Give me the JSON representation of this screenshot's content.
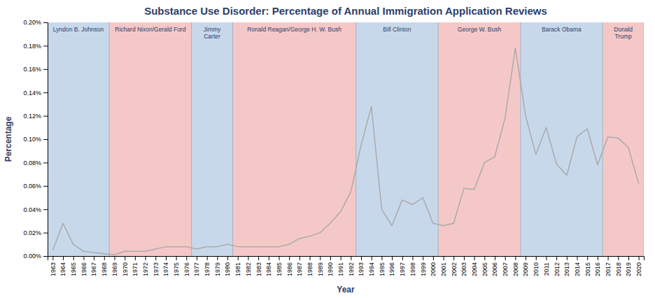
{
  "chart_data": {
    "type": "line",
    "title": "Substance Use Disorder: Percentage of Annual Immigration Application Reviews",
    "x_label": "Year",
    "y_label": "Percentage",
    "x": [
      1963,
      1964,
      1965,
      1966,
      1967,
      1968,
      1969,
      1970,
      1971,
      1972,
      1973,
      1974,
      1975,
      1976,
      1977,
      1978,
      1979,
      1980,
      1981,
      1982,
      1983,
      1984,
      1985,
      1986,
      1987,
      1988,
      1989,
      1990,
      1991,
      1992,
      1993,
      1994,
      1995,
      1996,
      1997,
      1998,
      1999,
      2000,
      2001,
      2002,
      2003,
      2004,
      2005,
      2006,
      2007,
      2008,
      2009,
      2010,
      2011,
      2012,
      2013,
      2014,
      2015,
      2016,
      2017,
      2018,
      2019,
      2020
    ],
    "values": [
      5e-05,
      0.00028,
      0.0001,
      4e-05,
      3e-05,
      2e-05,
      1e-05,
      4e-05,
      4e-05,
      4e-05,
      6e-05,
      8e-05,
      8e-05,
      8e-05,
      6e-05,
      8e-05,
      8e-05,
      0.0001,
      8e-05,
      8e-05,
      8e-05,
      8e-05,
      8e-05,
      0.0001,
      0.00015,
      0.00017,
      0.0002,
      0.00028,
      0.00038,
      0.00055,
      0.00095,
      0.00128,
      0.0004,
      0.00026,
      0.00048,
      0.00044,
      0.0005,
      0.00028,
      0.00026,
      0.00028,
      0.00058,
      0.00057,
      0.0008,
      0.00085,
      0.00118,
      0.00178,
      0.0012,
      0.00087,
      0.0011,
      0.00079,
      0.00069,
      0.00102,
      0.00109,
      0.00078,
      0.00102,
      0.00101,
      0.00093,
      0.00062
    ],
    "color": "#aaaaaa",
    "xlim": [
      1962.5,
      2020.5
    ],
    "xticks": [
      1963,
      1964,
      1965,
      1966,
      1967,
      1968,
      1969,
      1970,
      1971,
      1972,
      1973,
      1974,
      1975,
      1976,
      1977,
      1978,
      1979,
      1980,
      1981,
      1982,
      1983,
      1984,
      1985,
      1986,
      1987,
      1988,
      1989,
      1990,
      1991,
      1992,
      1993,
      1994,
      1995,
      1996,
      1997,
      1998,
      1999,
      2000,
      2001,
      2002,
      2003,
      2004,
      2005,
      2006,
      2007,
      2008,
      2009,
      2010,
      2011,
      2012,
      2013,
      2014,
      2015,
      2016,
      2017,
      2018,
      2019,
      2020
    ],
    "ylim": [
      0,
      0.002
    ],
    "yticks": [
      {
        "value": 0,
        "label": "0.00%"
      },
      {
        "value": 0.0002,
        "label": "0.02%"
      },
      {
        "value": 0.0004,
        "label": "0.04%"
      },
      {
        "value": 0.0006,
        "label": "0.06%"
      },
      {
        "value": 0.0008,
        "label": "0.08%"
      },
      {
        "value": 0.001,
        "label": "0.10%"
      },
      {
        "value": 0.0012,
        "label": "0.12%"
      },
      {
        "value": 0.0014,
        "label": "0.14%"
      },
      {
        "value": 0.0016,
        "label": "0.16%"
      },
      {
        "value": 0.0018,
        "label": "0.18%"
      },
      {
        "value": 0.002,
        "label": "0.20%"
      }
    ],
    "grid": false,
    "annotations": [
      {
        "text": "Lyndon B. Johnson",
        "x_start": 1962.5,
        "x_end": 1968.5,
        "color": "#c8d8eb"
      },
      {
        "text": "Richard Nixon/Gerald Ford",
        "x_start": 1968.5,
        "x_end": 1976.5,
        "color": "#f5c8c8"
      },
      {
        "text": "Jimmy\nCarter",
        "x_start": 1976.5,
        "x_end": 1980.5,
        "color": "#c8d8eb"
      },
      {
        "text": "Ronald Reagan/George H. W. Bush",
        "x_start": 1980.5,
        "x_end": 1992.5,
        "color": "#f5c8c8"
      },
      {
        "text": "Bill Clinton",
        "x_start": 1992.5,
        "x_end": 2000.5,
        "color": "#c8d8eb"
      },
      {
        "text": "George W. Bush",
        "x_start": 2000.5,
        "x_end": 2008.5,
        "color": "#f5c8c8"
      },
      {
        "text": "Barack Obama",
        "x_start": 2008.5,
        "x_end": 2016.5,
        "color": "#c8d8eb"
      },
      {
        "text": "Donald\nTrump",
        "x_start": 2016.5,
        "x_end": 2020.5,
        "color": "#f5c8c8"
      }
    ]
  }
}
